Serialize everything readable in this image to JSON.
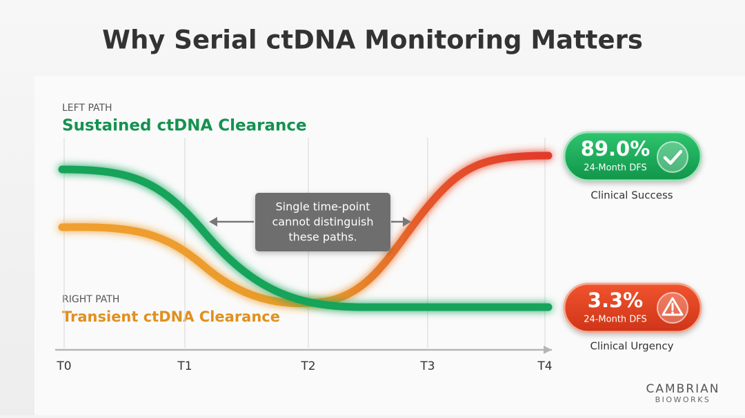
{
  "header": {
    "title": "Why Serial ctDNA Monitoring Matters"
  },
  "left_path": {
    "label": "LEFT PATH",
    "title": "Sustained ctDNA Clearance"
  },
  "right_path": {
    "label": "RIGHT PATH",
    "title": "Transient ctDNA Clearance"
  },
  "callout": {
    "lines": [
      "Single time-point",
      "cannot distinguish",
      "these paths."
    ]
  },
  "timepoints": [
    "T0",
    "T1",
    "T2",
    "T3",
    "T4"
  ],
  "outcomes": [
    {
      "value": "89.0%",
      "metric": "24-Month DFS",
      "caption": "Clinical Success"
    },
    {
      "value": "3.3%",
      "metric": "24-Month DFS",
      "caption": "Clinical Urgency"
    }
  ],
  "brand": {
    "name": "CAMBRIAN",
    "sub": "BIOWORKS"
  }
}
